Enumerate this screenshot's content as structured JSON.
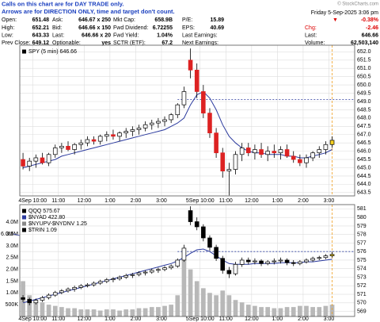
{
  "notice": [
    "Calls on this chart are for DAY TRADE only.",
    "Arrows are for DIRECTION ONLY, time and target don't count."
  ],
  "timestamp": "Friday  5-Sep-2025 3:06 pm",
  "copyright": "© StockCharts.com",
  "info": {
    "rows": [
      [
        [
          "Open:",
          "651.48"
        ],
        [
          "Ask:",
          "646.67 x 250"
        ],
        [
          "Mkt Cap:",
          "658.9B"
        ],
        [
          "P/E:",
          "15.89"
        ],
        [
          "▼",
          "-0.38%"
        ]
      ],
      [
        [
          "High:",
          "652.21"
        ],
        [
          "Bid:",
          "646.66 x 150"
        ],
        [
          "Fwd Dividend:",
          "6.72255"
        ],
        [
          "EPS:",
          "40.69"
        ],
        [
          "Chg:",
          "-2.46"
        ]
      ],
      [
        [
          "Low:",
          "643.33"
        ],
        [
          "Last:",
          "646.66 x 20"
        ],
        [
          "Fwd Yield:",
          "1.04%"
        ],
        [
          "Last Earnings:",
          ""
        ],
        [
          "Last:",
          "646.66"
        ]
      ],
      [
        [
          "Prev Close:",
          "649.12"
        ],
        [
          "Optionable:",
          "yes"
        ],
        [
          "SCTR (ETF):",
          "67.2"
        ],
        [
          "Next Earnings:",
          ""
        ],
        [
          "Volume:",
          "62,503,140"
        ]
      ]
    ]
  },
  "chart_data": [
    {
      "type": "candlestick",
      "legend": [
        {
          "name": "SPY (5 min) 646.66",
          "color": "#000000"
        }
      ],
      "categories": [
        null,
        null,
        "4Sep 10:00",
        null,
        null,
        null,
        "11:00",
        null,
        null,
        null,
        "12:00",
        null,
        null,
        null,
        "1:00",
        null,
        null,
        null,
        "2:00",
        null,
        null,
        null,
        "3:00",
        null,
        null,
        null,
        null,
        null,
        "5Sep 10:00",
        null,
        null,
        null,
        "11:00",
        null,
        null,
        null,
        "12:00",
        null,
        null,
        null,
        "1:00",
        null,
        null,
        null,
        "2:00",
        null,
        null,
        null,
        "3:00"
      ],
      "candles": [
        [
          645.5,
          645.9,
          644.9,
          645.1
        ],
        [
          645.1,
          645.6,
          644.8,
          645.4
        ],
        [
          645.4,
          645.8,
          645.0,
          645.6
        ],
        [
          645.6,
          645.9,
          645.2,
          645.3
        ],
        [
          645.3,
          645.9,
          645.1,
          645.8
        ],
        [
          645.8,
          646.4,
          645.6,
          646.2
        ],
        [
          646.2,
          646.5,
          645.9,
          646.3
        ],
        [
          646.3,
          646.6,
          646.0,
          646.1
        ],
        [
          646.1,
          646.5,
          645.8,
          646.4
        ],
        [
          646.4,
          646.7,
          646.1,
          646.5
        ],
        [
          646.5,
          646.9,
          646.3,
          646.7
        ],
        [
          646.7,
          646.9,
          646.4,
          646.6
        ],
        [
          646.6,
          647.0,
          646.4,
          646.9
        ],
        [
          646.9,
          647.2,
          646.6,
          647.0
        ],
        [
          647.0,
          647.3,
          646.7,
          646.9
        ],
        [
          646.9,
          647.2,
          646.6,
          647.1
        ],
        [
          647.1,
          647.4,
          646.8,
          647.2
        ],
        [
          647.2,
          647.5,
          646.9,
          647.3
        ],
        [
          647.3,
          647.6,
          647.0,
          647.4
        ],
        [
          647.4,
          647.8,
          647.2,
          647.6
        ],
        [
          647.6,
          647.9,
          647.3,
          647.7
        ],
        [
          647.7,
          648.0,
          647.4,
          647.8
        ],
        [
          647.8,
          648.1,
          647.5,
          647.9
        ],
        [
          647.9,
          648.3,
          647.7,
          648.2
        ],
        [
          648.2,
          648.9,
          648.0,
          648.8
        ],
        [
          648.8,
          649.9,
          648.6,
          649.6
        ],
        [
          651.5,
          652.2,
          650.4,
          650.9
        ],
        [
          650.9,
          651.3,
          649.2,
          649.6
        ],
        [
          649.6,
          650.0,
          648.0,
          648.3
        ],
        [
          648.3,
          648.6,
          646.8,
          647.1
        ],
        [
          647.1,
          647.4,
          645.6,
          645.9
        ],
        [
          645.9,
          646.2,
          644.4,
          644.8
        ],
        [
          644.8,
          645.3,
          643.33,
          644.9
        ],
        [
          644.9,
          646.0,
          644.6,
          645.8
        ],
        [
          645.8,
          646.5,
          645.4,
          646.2
        ],
        [
          646.2,
          646.5,
          645.7,
          645.9
        ],
        [
          645.9,
          646.4,
          645.5,
          646.1
        ],
        [
          646.1,
          646.5,
          645.6,
          645.8
        ],
        [
          645.8,
          646.3,
          645.4,
          646.0
        ],
        [
          646.0,
          646.4,
          645.6,
          645.9
        ],
        [
          645.9,
          646.3,
          645.5,
          646.1
        ],
        [
          646.1,
          646.4,
          645.6,
          645.7
        ],
        [
          645.7,
          646.0,
          645.3,
          645.5
        ],
        [
          645.5,
          645.8,
          645.1,
          645.3
        ],
        [
          645.3,
          645.8,
          645.0,
          645.6
        ],
        [
          645.6,
          646.0,
          645.4,
          645.9
        ],
        [
          645.9,
          646.3,
          645.6,
          646.1
        ],
        [
          646.1,
          646.6,
          645.8,
          646.4
        ],
        [
          646.4,
          646.9,
          646.2,
          646.66
        ]
      ],
      "up_color": "#ffffff",
      "down_color": "#dd2222",
      "ma": {
        "color": "#2b3a9e",
        "values": [
          645.0,
          645.1,
          645.2,
          645.3,
          645.4,
          645.5,
          645.7,
          645.8,
          645.9,
          646.0,
          646.1,
          646.2,
          646.3,
          646.4,
          646.5,
          646.6,
          646.7,
          646.8,
          646.9,
          647.0,
          647.1,
          647.2,
          647.3,
          647.5,
          647.7,
          648.0,
          648.8,
          649.4,
          649.6,
          649.2,
          648.5,
          647.6,
          646.9,
          646.5,
          646.2,
          646.0,
          645.9,
          645.9,
          645.8,
          645.8,
          645.8,
          645.7,
          645.7,
          645.6,
          645.6,
          645.7,
          645.8,
          645.9,
          646.1
        ]
      },
      "reference_line": 649.12,
      "ylim": [
        643.3,
        652.4
      ],
      "yticks": [
        {
          "value": 652,
          "label": "652.0"
        },
        651.5,
        {
          "value": 651,
          "label": "651.0"
        },
        650.5,
        {
          "value": 650,
          "label": "650.0"
        },
        649.5,
        {
          "value": 649,
          "label": "649.0"
        },
        648.5,
        {
          "value": 648,
          "label": "648.0"
        },
        647.5,
        {
          "value": 647,
          "label": "647.0"
        },
        646.5,
        {
          "value": 646,
          "label": "646.0"
        },
        645.5,
        {
          "value": 645,
          "label": "645.0"
        },
        644.5,
        {
          "value": 644,
          "label": "644.0"
        },
        643.5
      ],
      "grid": true
    },
    {
      "type": "candlestick",
      "legend": [
        {
          "name": "QQQ 575.67",
          "color": "#000000"
        },
        {
          "name": "$NYAD 422.80",
          "color": "#2b3a9e"
        },
        {
          "name": "$NYUPV-$NYDNV 1.25",
          "color": "#888888"
        },
        {
          "name": "$TRIN 1.09",
          "color": "#000000"
        }
      ],
      "categories": [
        null,
        null,
        "4Sep 10:00",
        null,
        null,
        null,
        "11:00",
        null,
        null,
        null,
        "12:00",
        null,
        null,
        null,
        "1:00",
        null,
        null,
        null,
        "2:00",
        null,
        null,
        null,
        "3:00",
        null,
        null,
        null,
        null,
        null,
        "5Sep 10:00",
        null,
        null,
        null,
        "11:00",
        null,
        null,
        null,
        "12:00",
        null,
        null,
        null,
        "1:00",
        null,
        null,
        null,
        "2:00",
        null,
        null,
        null,
        "3:00"
      ],
      "candles": [
        [
          570.6,
          570.9,
          570.1,
          570.4
        ],
        [
          570.4,
          570.6,
          569.7,
          570.0
        ],
        [
          570.0,
          570.5,
          569.8,
          570.3
        ],
        [
          570.3,
          570.8,
          570.1,
          570.6
        ],
        [
          570.6,
          571.1,
          570.4,
          570.9
        ],
        [
          570.9,
          571.4,
          570.7,
          571.2
        ],
        [
          571.2,
          571.6,
          571.0,
          571.4
        ],
        [
          571.4,
          571.8,
          571.2,
          571.6
        ],
        [
          571.6,
          572.0,
          571.3,
          571.8
        ],
        [
          571.8,
          572.2,
          571.6,
          572.0
        ],
        [
          572.0,
          572.3,
          571.8,
          572.1
        ],
        [
          572.1,
          572.5,
          571.9,
          572.3
        ],
        [
          572.3,
          572.7,
          572.1,
          572.5
        ],
        [
          572.5,
          572.9,
          572.3,
          572.7
        ],
        [
          572.7,
          573.0,
          572.4,
          572.8
        ],
        [
          572.8,
          573.2,
          572.6,
          573.0
        ],
        [
          573.0,
          573.4,
          572.8,
          573.2
        ],
        [
          573.2,
          573.5,
          572.9,
          573.3
        ],
        [
          573.3,
          573.7,
          573.1,
          573.5
        ],
        [
          573.5,
          573.8,
          573.2,
          573.6
        ],
        [
          573.6,
          574.0,
          573.4,
          573.8
        ],
        [
          573.8,
          574.1,
          573.5,
          573.9
        ],
        [
          573.9,
          574.3,
          573.7,
          574.1
        ],
        [
          574.1,
          574.5,
          573.9,
          574.3
        ],
        [
          574.3,
          575.2,
          574.1,
          575.0
        ],
        [
          575.0,
          576.8,
          574.8,
          576.4
        ],
        [
          580.8,
          581.3,
          579.1,
          579.5
        ],
        [
          579.5,
          580.0,
          578.5,
          578.9
        ],
        [
          578.9,
          579.2,
          577.2,
          577.6
        ],
        [
          577.6,
          577.9,
          576.1,
          576.5
        ],
        [
          576.5,
          576.8,
          574.9,
          575.2
        ],
        [
          575.2,
          575.5,
          573.4,
          573.8
        ],
        [
          573.8,
          574.2,
          572.9,
          573.4
        ],
        [
          573.4,
          574.8,
          573.2,
          574.5
        ],
        [
          574.5,
          575.3,
          574.2,
          575.0
        ],
        [
          575.0,
          575.3,
          574.5,
          574.8
        ],
        [
          574.8,
          575.2,
          574.5,
          574.9
        ],
        [
          574.9,
          575.1,
          574.3,
          574.6
        ],
        [
          574.6,
          575.0,
          574.4,
          574.8
        ],
        [
          574.8,
          575.2,
          574.5,
          574.9
        ],
        [
          574.9,
          575.3,
          574.6,
          575.0
        ],
        [
          575.0,
          575.2,
          574.4,
          574.7
        ],
        [
          574.7,
          575.0,
          574.3,
          574.6
        ],
        [
          574.6,
          575.0,
          574.4,
          574.8
        ],
        [
          574.8,
          575.2,
          574.6,
          575.0
        ],
        [
          575.0,
          575.4,
          574.8,
          575.2
        ],
        [
          575.2,
          575.5,
          575.0,
          575.3
        ],
        [
          575.3,
          575.7,
          575.1,
          575.5
        ],
        [
          575.5,
          576.0,
          575.3,
          575.67
        ]
      ],
      "up_color": "#ffffff",
      "down_color": "#000000",
      "ma": {
        "color": "#2b3a9e",
        "values": [
          570.0,
          570.2,
          570.4,
          570.6,
          570.8,
          571.0,
          571.2,
          571.4,
          571.6,
          571.8,
          572.0,
          572.2,
          572.4,
          572.6,
          572.8,
          573.0,
          573.2,
          573.4,
          573.6,
          573.8,
          574.0,
          574.2,
          574.4,
          574.6,
          574.9,
          575.3,
          575.8,
          576.2,
          576.3,
          576.0,
          575.5,
          575.0,
          574.6,
          574.5,
          574.5,
          574.5,
          574.6,
          574.6,
          574.6,
          574.6,
          574.7,
          574.7,
          574.7,
          574.7,
          574.8,
          574.8,
          574.9,
          575.0,
          575.1
        ]
      },
      "volume": {
        "color": "#b8b8b8",
        "values": [
          1500000,
          900000,
          700000,
          600000,
          500000,
          450000,
          400000,
          350000,
          350000,
          300000,
          300000,
          300000,
          250000,
          300000,
          300000,
          250000,
          300000,
          300000,
          350000,
          350000,
          400000,
          400000,
          450000,
          500000,
          900000,
          2400000,
          2000000,
          1500000,
          1200000,
          1000000,
          900000,
          1100000,
          900000,
          700000,
          600000,
          500000,
          450000,
          400000,
          400000,
          350000,
          350000,
          400000,
          400000,
          450000,
          450000,
          400000,
          400000,
          450000,
          500000
        ],
        "ylim": [
          0,
          4750000
        ],
        "yticks": [
          {
            "value": 4000000,
            "label": "4.0M"
          },
          {
            "value": 3500000,
            "label": "3.5M"
          },
          {
            "value": 3000000,
            "label": "3.0M"
          },
          {
            "value": 2500000,
            "label": "2.5M"
          },
          {
            "value": 2000000,
            "label": "2.0M"
          },
          {
            "value": 1500000,
            "label": "1.5M"
          },
          {
            "value": 1000000,
            "label": "1.0M"
          },
          {
            "value": 500000,
            "label": "500K"
          }
        ]
      },
      "side_label": "6.0M",
      "reference_line": 576,
      "ylim": [
        568.4,
        581.5
      ],
      "yticks": [
        581,
        580,
        579,
        578,
        577,
        576,
        575,
        574,
        573,
        572,
        571,
        570,
        569
      ],
      "grid": true
    }
  ]
}
